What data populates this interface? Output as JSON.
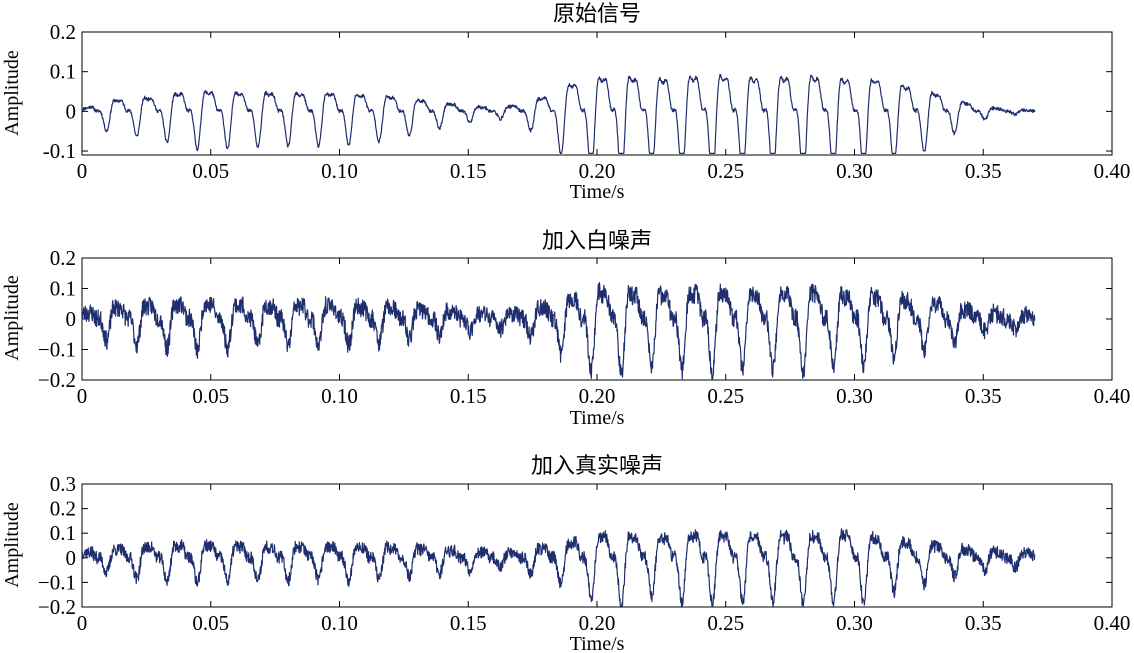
{
  "chart_data": [
    {
      "type": "line",
      "title": "原始信号",
      "xlabel": "Time/s",
      "ylabel": "Amplitude",
      "xlim": [
        0,
        0.4
      ],
      "ylim": [
        -0.11,
        0.2
      ],
      "xticks": [
        0,
        0.05,
        0.1,
        0.15,
        0.2,
        0.25,
        0.3,
        0.35,
        0.4
      ],
      "xtick_labels": [
        "0",
        "0.05",
        "0.10",
        "0.15",
        "0.20",
        "0.25",
        "0.30",
        "0.35",
        "0.40"
      ],
      "yticks": [
        -0.1,
        0,
        0.1,
        0.2
      ],
      "ytick_labels": [
        "-0.1",
        "0",
        "0.1",
        "0.2"
      ],
      "grid": false,
      "color": "#1f2f6e",
      "x": [
        0,
        0.005,
        0.01,
        0.02,
        0.03,
        0.04,
        0.05,
        0.06,
        0.08,
        0.1,
        0.12,
        0.14,
        0.16,
        0.17,
        0.18,
        0.19,
        0.2,
        0.21,
        0.22,
        0.23,
        0.24,
        0.25,
        0.26,
        0.27,
        0.28,
        0.29,
        0.3,
        0.31,
        0.32,
        0.33,
        0.34,
        0.35,
        0.36,
        0.37
      ],
      "envelope": [
        0.01,
        0.03,
        0.05,
        0.06,
        0.07,
        0.09,
        0.095,
        0.09,
        0.085,
        0.085,
        0.07,
        0.04,
        0.015,
        0.03,
        0.07,
        0.13,
        0.16,
        0.17,
        0.15,
        0.16,
        0.17,
        0.17,
        0.16,
        0.16,
        0.17,
        0.16,
        0.15,
        0.15,
        0.12,
        0.09,
        0.05,
        0.02,
        0.008,
        0.004
      ],
      "noise": 0.004,
      "seed": 11
    },
    {
      "type": "line",
      "title": "加入白噪声",
      "xlabel": "Time/s",
      "ylabel": "Amplitude",
      "xlim": [
        0,
        0.4
      ],
      "ylim": [
        -0.2,
        0.2
      ],
      "xticks": [
        0,
        0.05,
        0.1,
        0.15,
        0.2,
        0.25,
        0.3,
        0.35,
        0.4
      ],
      "xtick_labels": [
        "0",
        "0.05",
        "0.10",
        "0.15",
        "0.20",
        "0.25",
        "0.30",
        "0.35",
        "0.40"
      ],
      "yticks": [
        -0.2,
        -0.1,
        0,
        0.1,
        0.2
      ],
      "ytick_labels": [
        "−0.2",
        "−0.1",
        "0",
        "0.1",
        "0.2"
      ],
      "grid": false,
      "color": "#1f2f6e",
      "x": [
        0,
        0.005,
        0.01,
        0.02,
        0.03,
        0.04,
        0.05,
        0.06,
        0.08,
        0.1,
        0.12,
        0.14,
        0.16,
        0.17,
        0.18,
        0.19,
        0.2,
        0.21,
        0.22,
        0.23,
        0.24,
        0.25,
        0.26,
        0.27,
        0.28,
        0.29,
        0.3,
        0.31,
        0.32,
        0.33,
        0.34,
        0.35,
        0.36,
        0.37
      ],
      "envelope": [
        0.03,
        0.05,
        0.07,
        0.08,
        0.09,
        0.1,
        0.1,
        0.09,
        0.085,
        0.085,
        0.07,
        0.05,
        0.03,
        0.04,
        0.08,
        0.13,
        0.17,
        0.17,
        0.15,
        0.16,
        0.17,
        0.17,
        0.16,
        0.16,
        0.18,
        0.16,
        0.15,
        0.14,
        0.12,
        0.1,
        0.07,
        0.04,
        0.03,
        0.03
      ],
      "noise": 0.03,
      "seed": 23
    },
    {
      "type": "line",
      "title": "加入真实噪声",
      "xlabel": "Time/s",
      "ylabel": "Amplitude",
      "xlim": [
        0,
        0.4
      ],
      "ylim": [
        -0.2,
        0.3
      ],
      "xticks": [
        0,
        0.05,
        0.1,
        0.15,
        0.2,
        0.25,
        0.3,
        0.35,
        0.4
      ],
      "xtick_labels": [
        "0",
        "0.05",
        "0.10",
        "0.15",
        "0.20",
        "0.25",
        "0.30",
        "0.35",
        "0.40"
      ],
      "yticks": [
        -0.2,
        -0.1,
        0,
        0.1,
        0.2,
        0.3
      ],
      "ytick_labels": [
        "−0.2",
        "−0.1",
        "0",
        "0.1",
        "0.2",
        "0.3"
      ],
      "grid": false,
      "color": "#1f2f6e",
      "x": [
        0,
        0.005,
        0.01,
        0.02,
        0.03,
        0.04,
        0.05,
        0.06,
        0.08,
        0.1,
        0.12,
        0.14,
        0.16,
        0.17,
        0.18,
        0.19,
        0.2,
        0.21,
        0.22,
        0.23,
        0.24,
        0.25,
        0.26,
        0.27,
        0.28,
        0.29,
        0.3,
        0.31,
        0.32,
        0.33,
        0.34,
        0.35,
        0.36,
        0.37
      ],
      "envelope": [
        0.04,
        0.05,
        0.06,
        0.08,
        0.09,
        0.1,
        0.1,
        0.09,
        0.09,
        0.09,
        0.08,
        0.06,
        0.04,
        0.05,
        0.08,
        0.12,
        0.17,
        0.19,
        0.15,
        0.17,
        0.18,
        0.18,
        0.17,
        0.17,
        0.18,
        0.17,
        0.2,
        0.15,
        0.12,
        0.1,
        0.07,
        0.05,
        0.04,
        0.04
      ],
      "noise": 0.025,
      "seed": 37
    }
  ]
}
